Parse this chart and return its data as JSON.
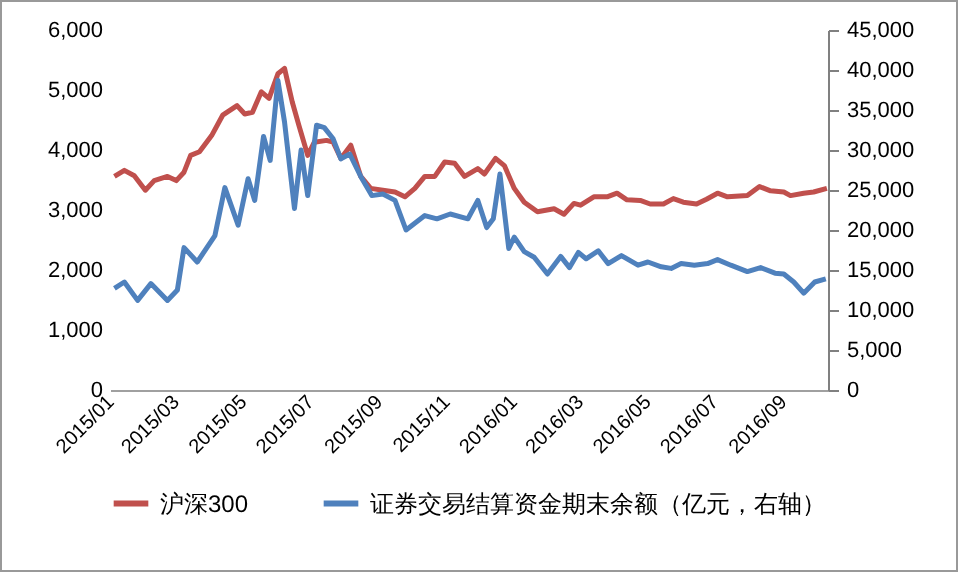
{
  "chart_data": {
    "type": "line",
    "legend": "bottom",
    "grid": false,
    "marker": "none",
    "line_style": "solid",
    "xlim": [
      "2015-01-01",
      "2016-10-12"
    ],
    "xticks": [
      {
        "value": "2015-01-01",
        "label": "2015/01"
      },
      {
        "value": "2015-03-01",
        "label": "2015/03"
      },
      {
        "value": "2015-05-01",
        "label": "2015/05"
      },
      {
        "value": "2015-07-01",
        "label": "2015/07"
      },
      {
        "value": "2015-09-01",
        "label": "2015/09"
      },
      {
        "value": "2015-11-01",
        "label": "2015/11"
      },
      {
        "value": "2016-01-01",
        "label": "2016/01"
      },
      {
        "value": "2016-03-01",
        "label": "2016/03"
      },
      {
        "value": "2016-05-01",
        "label": "2016/05"
      },
      {
        "value": "2016-07-01",
        "label": "2016/07"
      },
      {
        "value": "2016-09-01",
        "label": "2016/09"
      }
    ],
    "ylim": [
      0,
      6000
    ],
    "yticks": [
      {
        "value": 0,
        "label": "0"
      },
      {
        "value": 1000,
        "label": "1,000"
      },
      {
        "value": 2000,
        "label": "2,000"
      },
      {
        "value": 3000,
        "label": "3,000"
      },
      {
        "value": 4000,
        "label": "4,000"
      },
      {
        "value": 5000,
        "label": "5,000"
      },
      {
        "value": 6000,
        "label": "6,000"
      }
    ],
    "y2lim": [
      0,
      45000
    ],
    "y2ticks": [
      {
        "value": 0,
        "label": "0"
      },
      {
        "value": 5000,
        "label": "5,000"
      },
      {
        "value": 10000,
        "label": "10,000"
      },
      {
        "value": 15000,
        "label": "15,000"
      },
      {
        "value": 20000,
        "label": "20,000"
      },
      {
        "value": 25000,
        "label": "25,000"
      },
      {
        "value": 30000,
        "label": "30,000"
      },
      {
        "value": 35000,
        "label": "35,000"
      },
      {
        "value": 40000,
        "label": "40,000"
      },
      {
        "value": 45000,
        "label": "45,000"
      }
    ],
    "series": [
      {
        "name": "沪深300",
        "color": "#c0504d",
        "x": [
          "2015-01-05",
          "2015-01-14",
          "2015-01-23",
          "2015-02-02",
          "2015-02-10",
          "2015-02-22",
          "2015-03-02",
          "2015-03-09",
          "2015-03-15",
          "2015-03-23",
          "2015-04-03",
          "2015-04-13",
          "2015-04-26",
          "2015-05-03",
          "2015-05-10",
          "2015-05-18",
          "2015-05-25",
          "2015-06-02",
          "2015-06-08",
          "2015-06-15",
          "2015-06-21",
          "2015-06-29",
          "2015-07-05",
          "2015-07-16",
          "2015-07-22",
          "2015-07-29",
          "2015-08-07",
          "2015-08-16",
          "2015-08-25",
          "2015-09-05",
          "2015-09-16",
          "2015-09-25",
          "2015-10-04",
          "2015-10-13",
          "2015-10-22",
          "2015-10-31",
          "2015-11-09",
          "2015-11-18",
          "2015-11-30",
          "2015-12-06",
          "2015-12-16",
          "2015-12-24",
          "2016-01-02",
          "2016-01-11",
          "2016-01-23",
          "2016-02-07",
          "2016-02-16",
          "2016-02-25",
          "2016-03-02",
          "2016-03-14",
          "2016-03-26",
          "2016-04-04",
          "2016-04-13",
          "2016-04-25",
          "2016-05-04",
          "2016-05-16",
          "2016-05-25",
          "2016-06-03",
          "2016-06-15",
          "2016-06-24",
          "2016-07-04",
          "2016-07-13",
          "2016-07-31",
          "2016-08-11",
          "2016-08-21",
          "2016-09-02",
          "2016-09-08",
          "2016-09-20",
          "2016-09-29",
          "2016-10-11"
        ],
        "values": [
          3560,
          3660,
          3570,
          3330,
          3490,
          3560,
          3490,
          3630,
          3910,
          3970,
          4240,
          4580,
          4740,
          4600,
          4630,
          4970,
          4860,
          5270,
          5360,
          4800,
          4410,
          3910,
          4130,
          4160,
          4130,
          3860,
          4080,
          3560,
          3360,
          3330,
          3300,
          3220,
          3360,
          3560,
          3560,
          3800,
          3780,
          3560,
          3690,
          3600,
          3860,
          3740,
          3360,
          3130,
          2970,
          3020,
          2930,
          3110,
          3080,
          3220,
          3220,
          3280,
          3170,
          3160,
          3100,
          3100,
          3190,
          3130,
          3100,
          3180,
          3280,
          3220,
          3240,
          3390,
          3320,
          3300,
          3240,
          3280,
          3300,
          3360
        ]
      },
      {
        "name": "证券交易结算资金期末余额（亿元，右轴）",
        "color": "#4f81bd",
        "axis": "y2",
        "x": [
          "2015-01-05",
          "2015-01-14",
          "2015-01-26",
          "2015-02-07",
          "2015-02-22",
          "2015-03-03",
          "2015-03-09",
          "2015-03-21",
          "2015-04-06",
          "2015-04-15",
          "2015-04-27",
          "2015-05-06",
          "2015-05-12",
          "2015-05-20",
          "2015-05-26",
          "2015-06-02",
          "2015-06-08",
          "2015-06-17",
          "2015-06-23",
          "2015-06-29",
          "2015-07-07",
          "2015-07-14",
          "2015-07-22",
          "2015-07-29",
          "2015-08-06",
          "2015-08-16",
          "2015-08-26",
          "2015-09-05",
          "2015-09-16",
          "2015-09-26",
          "2015-10-13",
          "2015-10-24",
          "2015-11-05",
          "2015-11-21",
          "2015-11-30",
          "2015-12-08",
          "2015-12-14",
          "2015-12-20",
          "2015-12-28",
          "2016-01-02",
          "2016-01-11",
          "2016-01-20",
          "2016-02-01",
          "2016-02-13",
          "2016-02-21",
          "2016-02-29",
          "2016-03-07",
          "2016-03-18",
          "2016-03-27",
          "2016-04-08",
          "2016-04-23",
          "2016-05-02",
          "2016-05-14",
          "2016-05-23",
          "2016-06-01",
          "2016-06-13",
          "2016-06-25",
          "2016-07-04",
          "2016-07-16",
          "2016-07-31",
          "2016-08-12",
          "2016-08-25",
          "2016-09-02",
          "2016-09-11",
          "2016-09-20",
          "2016-09-30",
          "2016-10-10"
        ],
        "values": [
          12700,
          13500,
          11200,
          13300,
          11200,
          12500,
          17800,
          16000,
          19300,
          25300,
          20600,
          26400,
          23700,
          31700,
          28700,
          38700,
          33500,
          22700,
          30000,
          24300,
          33100,
          32800,
          31400,
          28900,
          29500,
          26700,
          24300,
          24500,
          23700,
          20000,
          21800,
          21400,
          22000,
          21400,
          23700,
          20300,
          21400,
          27000,
          17700,
          19100,
          17300,
          16600,
          14500,
          16700,
          15300,
          17200,
          16400,
          17400,
          15800,
          16800,
          15600,
          16000,
          15400,
          15200,
          15800,
          15600,
          15800,
          16300,
          15600,
          14800,
          15300,
          14600,
          14500,
          13500,
          12100,
          13500,
          13900
        ]
      }
    ]
  }
}
